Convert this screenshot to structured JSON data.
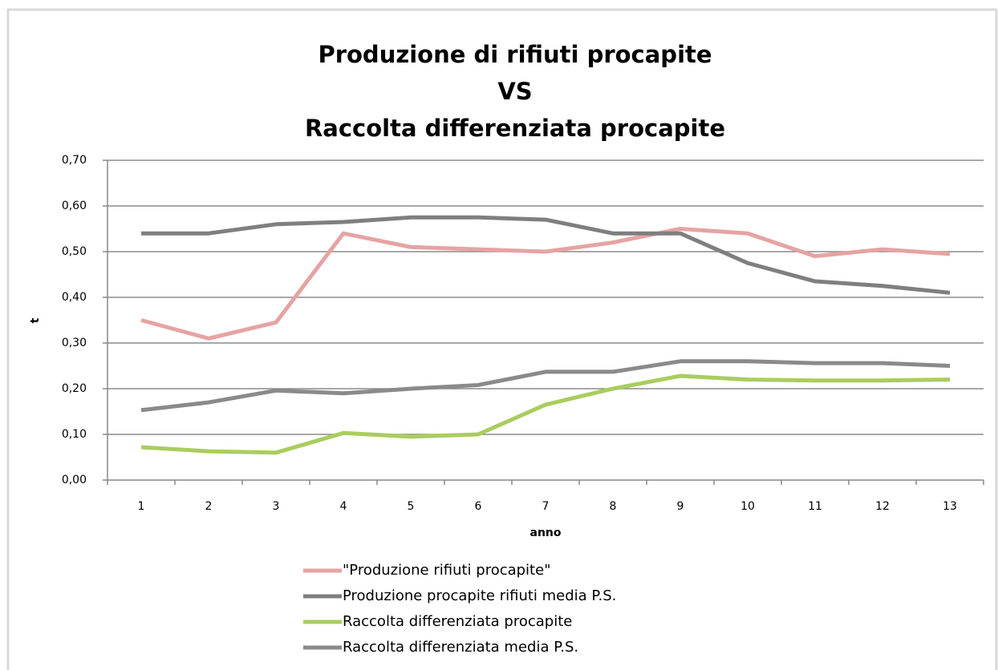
{
  "chart_data": {
    "type": "line",
    "title": [
      "Produzione di rifiuti procapite",
      "VS",
      "Raccolta differenziata procapite"
    ],
    "xlabel": "anno",
    "ylabel": "t",
    "categories": [
      "1",
      "2",
      "3",
      "4",
      "5",
      "6",
      "7",
      "8",
      "9",
      "10",
      "11",
      "12",
      "13"
    ],
    "series": [
      {
        "name": "\"Produzione rifiuti procapite\"",
        "color": "#e6a3a3",
        "values": [
          0.35,
          0.31,
          0.345,
          0.54,
          0.51,
          0.505,
          0.5,
          0.52,
          0.55,
          0.54,
          0.49,
          0.505,
          0.495
        ]
      },
      {
        "name": "Produzione procapite rifiuti media P.S.",
        "color": "#7f7f7f",
        "values": [
          0.54,
          0.54,
          0.56,
          0.565,
          0.575,
          0.575,
          0.57,
          0.54,
          0.54,
          0.475,
          0.435,
          0.425,
          0.41
        ]
      },
      {
        "name": "Raccolta differenziata procapite",
        "color": "#a9cd5e",
        "values": [
          0.072,
          0.063,
          0.06,
          0.103,
          0.095,
          0.1,
          0.165,
          0.2,
          0.228,
          0.22,
          0.218,
          0.218,
          0.22
        ]
      },
      {
        "name": "Raccolta differenziata media P.S.",
        "color": "#8a8a8a",
        "values": [
          0.153,
          0.17,
          0.196,
          0.19,
          0.2,
          0.208,
          0.237,
          0.237,
          0.26,
          0.26,
          0.256,
          0.256,
          0.25
        ]
      }
    ],
    "ylim": [
      0,
      0.7
    ],
    "yticks": [
      {
        "value": 0,
        "label": "0,00"
      },
      {
        "value": 0.1,
        "label": "0,10"
      },
      {
        "value": 0.2,
        "label": "0,20"
      },
      {
        "value": 0.3,
        "label": "0,30"
      },
      {
        "value": 0.4,
        "label": "0,40"
      },
      {
        "value": 0.5,
        "label": "0,50"
      },
      {
        "value": 0.6,
        "label": "0,60"
      },
      {
        "value": 0.7,
        "label": "0,70"
      }
    ],
    "grid": true,
    "legend": "bottom"
  }
}
